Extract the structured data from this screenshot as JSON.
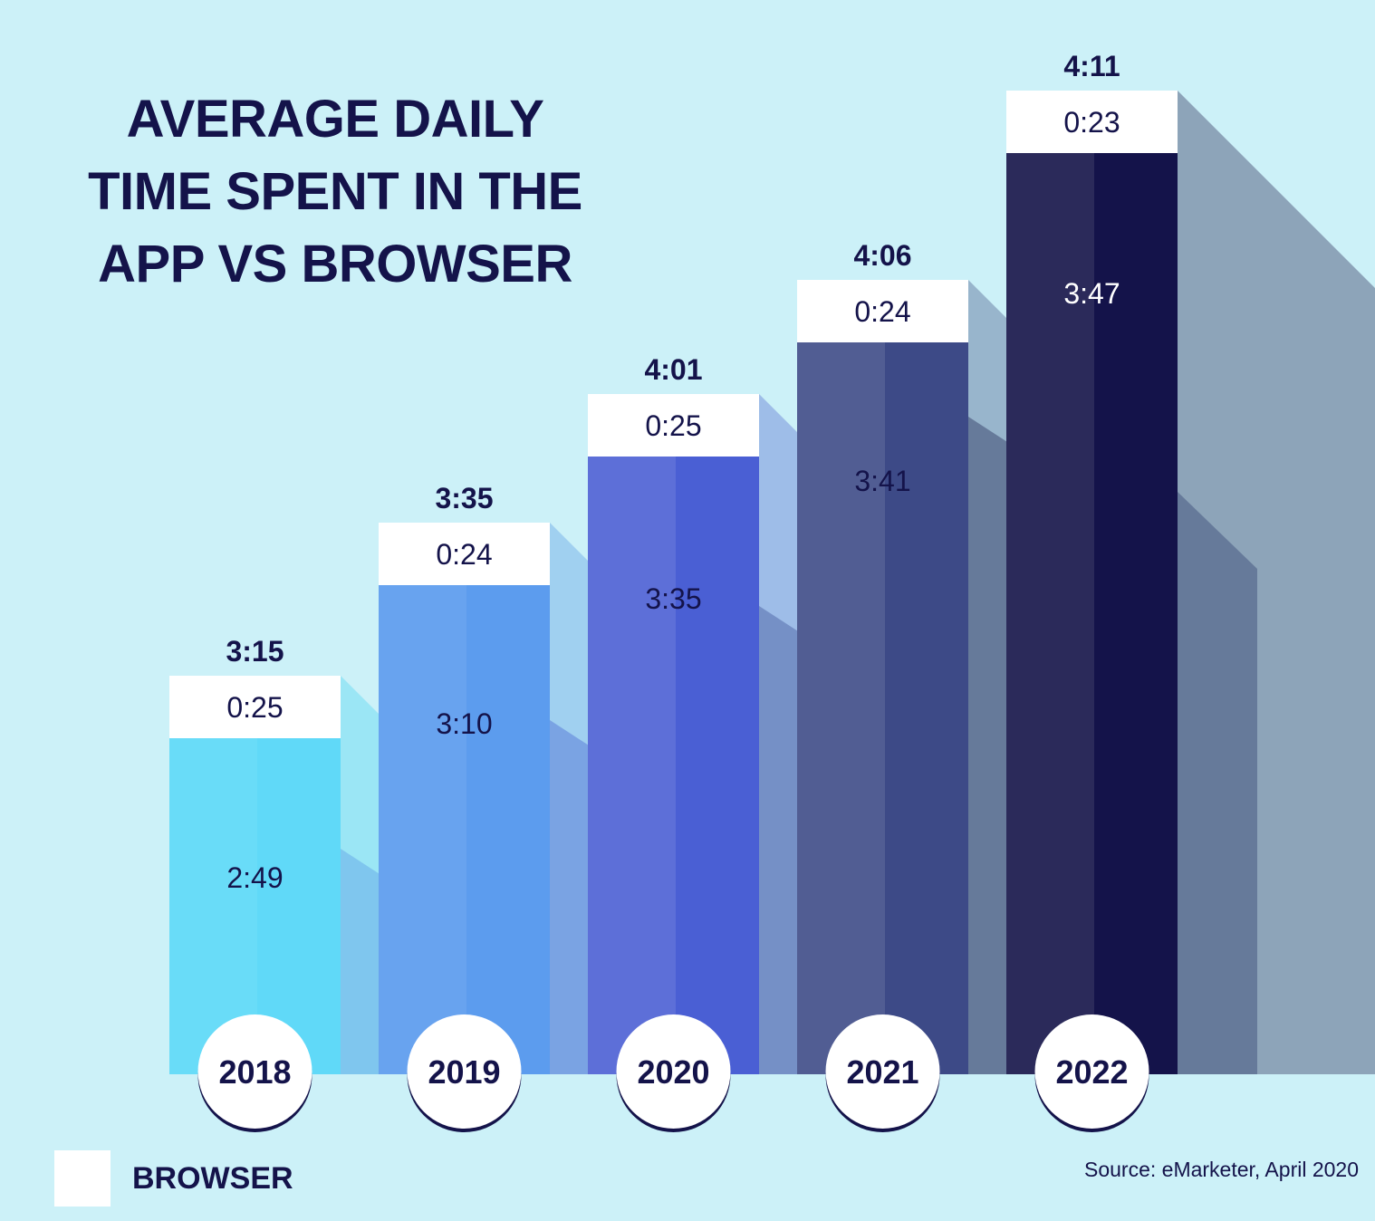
{
  "title_lines": [
    "AVERAGE DAILY",
    "TIME SPENT IN THE",
    "APP VS BROWSER"
  ],
  "legend": {
    "label": "BROWSER",
    "swatch_color": "#ffffff"
  },
  "source": "Source: eMarketer, April 2020",
  "colors": {
    "background": "#ccf1f8",
    "text_dark": "#14134a",
    "browser_segment": "#ffffff"
  },
  "chart_data": {
    "type": "bar",
    "stacked": true,
    "title": "AVERAGE DAILY TIME SPENT IN THE APP VS BROWSER",
    "xlabel": "",
    "ylabel": "",
    "units": "hours:minutes",
    "categories": [
      "2018",
      "2019",
      "2020",
      "2021",
      "2022"
    ],
    "series": [
      {
        "name": "App",
        "values": [
          "2:49",
          "3:10",
          "3:35",
          "3:41",
          "3:47"
        ],
        "values_minutes": [
          169,
          190,
          215,
          221,
          227
        ]
      },
      {
        "name": "Browser",
        "values": [
          "0:25",
          "0:24",
          "0:25",
          "0:24",
          "0:23"
        ],
        "values_minutes": [
          25,
          24,
          25,
          24,
          23
        ]
      }
    ],
    "totals": [
      "3:15",
      "3:35",
      "4:01",
      "4:06",
      "4:11"
    ],
    "totals_minutes": [
      195,
      215,
      241,
      246,
      251
    ],
    "legend": {
      "entries": [
        "BROWSER"
      ],
      "position": "bottom-left"
    },
    "grid": false,
    "bar_colors": [
      {
        "left": "#69dcf8",
        "right": "#60d9f8",
        "shadow": "#9be6f5",
        "label_color": "#14134a"
      },
      {
        "left": "#68a3ef",
        "right": "#5c9cee",
        "shadow": "#a0d0f0",
        "label_color": "#14134a"
      },
      {
        "left": "#5d6fd8",
        "right": "#4a5fd4",
        "shadow": "#9ebde8",
        "label_color": "#14134a"
      },
      {
        "left": "#515d93",
        "right": "#3d4a87",
        "shadow": "#98b5cc",
        "label_color": "#14134a"
      },
      {
        "left": "#2b2a5a",
        "right": "#14134a",
        "shadow": "#8da4b9",
        "label_color": "#ffffff"
      }
    ]
  }
}
